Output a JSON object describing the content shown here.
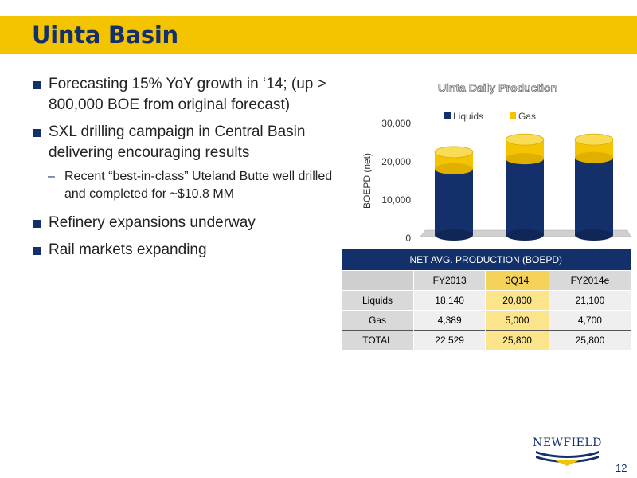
{
  "slide": {
    "title": "Uinta Basin",
    "page_number": "12",
    "logo_text": "NEWFIELD"
  },
  "bullets": [
    {
      "text": "Forecasting 15% YoY growth in ‘14; (up > 800,000 BOE from original forecast)"
    },
    {
      "text": "SXL drilling campaign in Central Basin delivering encouraging results",
      "sub": "Recent “best-in-class” Uteland Butte well drilled and completed for ~$10.8 MM"
    },
    {
      "text": "Refinery expansions underway"
    },
    {
      "text": "Rail markets expanding"
    }
  ],
  "chart_data": {
    "type": "bar",
    "stacked": true,
    "title": "Uinta Daily Production",
    "ylabel": "BOEPD (net)",
    "xlabel": "",
    "ylim": [
      0,
      30000
    ],
    "yticks": [
      "0",
      "10,000",
      "20,000",
      "30,000"
    ],
    "categories": [
      "",
      "",
      ""
    ],
    "series": [
      {
        "name": "Liquids",
        "values": [
          18140,
          20800,
          21100
        ],
        "color": "#14306b"
      },
      {
        "name": "Gas",
        "values": [
          4389,
          5000,
          4700
        ],
        "color": "#f5c400"
      }
    ],
    "legend_position": "top"
  },
  "table": {
    "title": "NET AVG. PRODUCTION (BOEPD)",
    "columns": [
      "FY2013",
      "3Q14",
      "FY2014e"
    ],
    "rows": [
      {
        "label": "Liquids",
        "values": [
          "18,140",
          "20,800",
          "21,100"
        ]
      },
      {
        "label": "Gas",
        "values": [
          "4,389",
          "5,000",
          "4,700"
        ]
      },
      {
        "label": "TOTAL",
        "values": [
          "22,529",
          "25,800",
          "25,800"
        ]
      }
    ]
  },
  "colors": {
    "accent": "#f5c400",
    "brand": "#14306b"
  }
}
